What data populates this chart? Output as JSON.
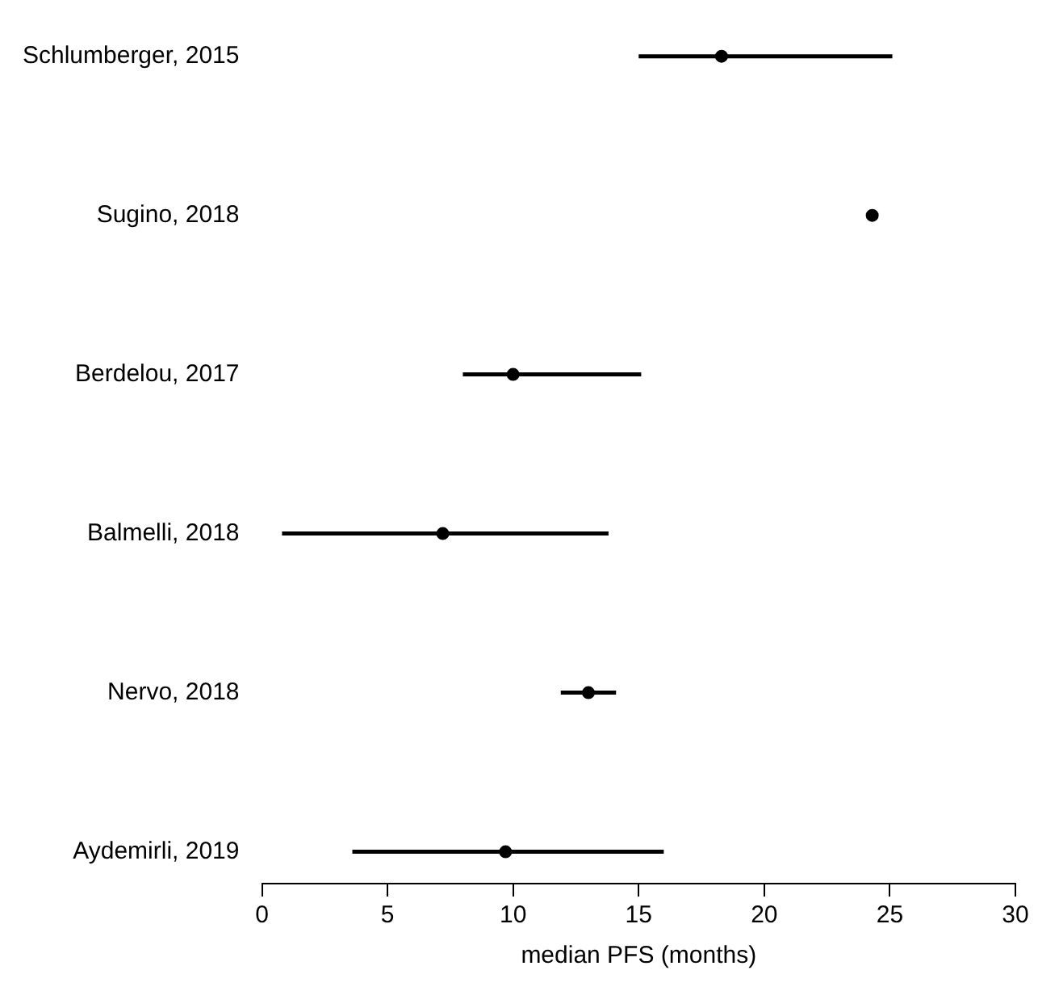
{
  "chart_data": {
    "type": "scatter",
    "orientation": "horizontal",
    "xlabel": "median PFS (months)",
    "categories": [
      "Schlumberger, 2015",
      "Sugino, 2018",
      "Berdelou, 2017",
      "Balmelli, 2018",
      "Nervo, 2018",
      "Aydemirli, 2019"
    ],
    "values": [
      18.3,
      24.3,
      10.0,
      7.2,
      13.0,
      9.7
    ],
    "errors": [
      [
        15.0,
        25.1
      ],
      null,
      [
        8.0,
        15.1
      ],
      [
        0.8,
        13.8
      ],
      [
        11.9,
        14.1
      ],
      [
        3.6,
        16.0
      ]
    ],
    "color": "#000000",
    "marker": "circle",
    "xlim": [
      0,
      30
    ],
    "xticks": [
      0,
      5,
      10,
      15,
      20,
      25,
      30
    ],
    "grid": false,
    "legend": false
  }
}
